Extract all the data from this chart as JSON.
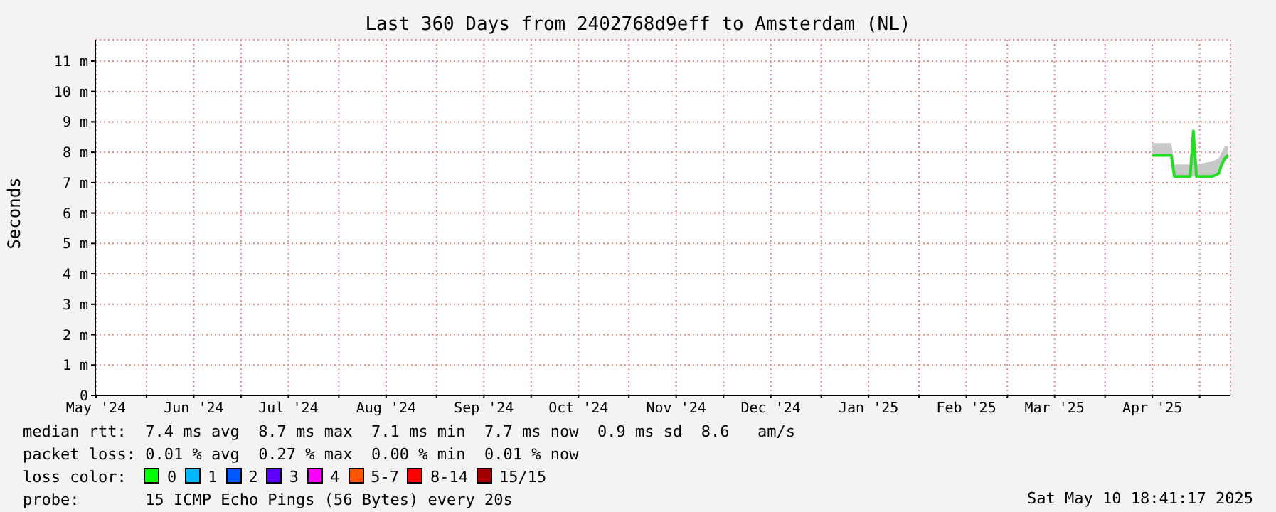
{
  "chart_data": {
    "type": "line",
    "title": "Last 360 Days from 2402768d9eff to Amsterdam (NL)",
    "ylabel": "Seconds",
    "xlim": [
      "2024-05-15T18:41",
      "2025-05-10T18:41"
    ],
    "xticks": [
      {
        "value": "2024-05-16",
        "label": "May '24"
      },
      {
        "value": "2024-06-01",
        "label": null
      },
      {
        "value": "2024-06-16",
        "label": "Jun '24"
      },
      {
        "value": "2024-07-01",
        "label": null
      },
      {
        "value": "2024-07-16",
        "label": "Jul '24"
      },
      {
        "value": "2024-08-01",
        "label": null
      },
      {
        "value": "2024-08-16",
        "label": "Aug '24"
      },
      {
        "value": "2024-09-01",
        "label": null
      },
      {
        "value": "2024-09-16",
        "label": "Sep '24"
      },
      {
        "value": "2024-10-01",
        "label": null
      },
      {
        "value": "2024-10-16",
        "label": "Oct '24"
      },
      {
        "value": "2024-11-01",
        "label": null
      },
      {
        "value": "2024-11-16",
        "label": "Nov '24"
      },
      {
        "value": "2024-12-01",
        "label": null
      },
      {
        "value": "2024-12-16",
        "label": "Dec '24"
      },
      {
        "value": "2025-01-01",
        "label": null
      },
      {
        "value": "2025-01-16",
        "label": "Jan '25"
      },
      {
        "value": "2025-02-01",
        "label": null
      },
      {
        "value": "2025-02-16",
        "label": "Feb '25"
      },
      {
        "value": "2025-03-01",
        "label": null
      },
      {
        "value": "2025-03-16",
        "label": "Mar '25"
      },
      {
        "value": "2025-04-01",
        "label": null
      },
      {
        "value": "2025-04-16",
        "label": "Apr '25"
      },
      {
        "value": "2025-05-01",
        "label": null
      }
    ],
    "ylim": [
      0,
      11.7
    ],
    "yticks": [
      0,
      {
        "value": 1,
        "label": "1 m"
      },
      {
        "value": 2,
        "label": "2 m"
      },
      {
        "value": 3,
        "label": "3 m"
      },
      {
        "value": 4,
        "label": "4 m"
      },
      {
        "value": 5,
        "label": "5 m"
      },
      {
        "value": 6,
        "label": "6 m"
      },
      {
        "value": 7,
        "label": "7 m"
      },
      {
        "value": 8,
        "label": "8 m"
      },
      {
        "value": 9,
        "label": "9 m"
      },
      {
        "value": 10,
        "label": "10 m"
      },
      {
        "value": 11,
        "label": "11 m"
      }
    ],
    "grid": true,
    "marker": "none",
    "line_style": "solid",
    "series": [
      {
        "color": "#20e020",
        "x": [
          "2025-04-16",
          "2025-04-22",
          "2025-04-23",
          "2025-04-28",
          "2025-04-29",
          "2025-04-30",
          "2025-05-05",
          "2025-05-07",
          "2025-05-08",
          "2025-05-09",
          "2025-05-10"
        ],
        "values": [
          7.9,
          7.9,
          7.2,
          7.2,
          8.7,
          7.2,
          7.2,
          7.3,
          7.6,
          7.8,
          7.9
        ],
        "lower": [
          7.9,
          7.9,
          7.2,
          7.2,
          7.2,
          7.2,
          7.2,
          7.3,
          7.5,
          7.7,
          7.8
        ],
        "upper": [
          8.3,
          8.3,
          7.6,
          7.6,
          8.7,
          7.6,
          7.7,
          7.8,
          8.0,
          8.2,
          8.2
        ]
      }
    ],
    "annotations": [
      "median rtt:  7.4 ms avg  8.7 ms max  7.1 ms min  7.7 ms now  0.9 ms sd  8.6   am/s",
      "packet loss: 0.01 % avg  0.27 % max  0.00 % min  0.01 % now",
      "loss color:",
      "0",
      "1",
      "2",
      "3",
      "4",
      "5-7",
      "8-14",
      "15/15",
      "probe:       15 ICMP Echo Pings (56 Bytes) every 20s",
      "Sat May 10 18:41:17 2025"
    ]
  }
}
